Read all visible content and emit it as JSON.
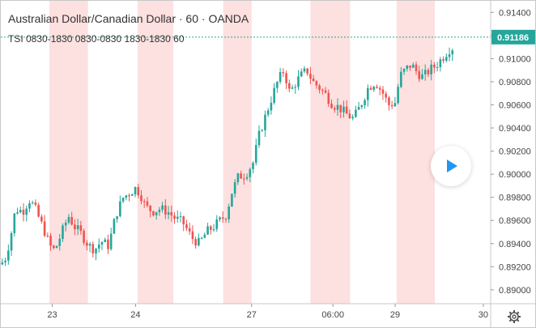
{
  "header": {
    "title": "Australian Dollar/Canadian Dollar · 60 · OANDA",
    "indicator": "TSI 0830-1830 0830-0830 1830-1830 60"
  },
  "price_badge": "0.91186",
  "colors": {
    "up": "#26a69a",
    "down": "#ef5350",
    "session_band": "#fde0e0",
    "badge": "#26a69a",
    "accent": "#2196f3"
  },
  "icons": {
    "play": "play-icon",
    "settings": "gear-icon"
  },
  "chart_data": {
    "type": "candlestick",
    "title": "Australian Dollar/Canadian Dollar · 60 · OANDA",
    "y_ticks": [
      "0.91400",
      "0.91200",
      "0.91000",
      "0.90800",
      "0.90600",
      "0.90400",
      "0.90200",
      "0.90000",
      "0.89800",
      "0.89600",
      "0.89400",
      "0.89200",
      "0.89000"
    ],
    "ylim": [
      0.8888,
      0.915
    ],
    "x_ticks": [
      {
        "label": "23",
        "pos": 0.105
      },
      {
        "label": "24",
        "pos": 0.275
      },
      {
        "label": "27",
        "pos": 0.512
      },
      {
        "label": "06:00",
        "pos": 0.678
      },
      {
        "label": "29",
        "pos": 0.805
      },
      {
        "label": "30",
        "pos": 0.985
      }
    ],
    "last_price": 0.91186,
    "session_bands": [
      [
        0.099,
        0.178
      ],
      [
        0.279,
        0.352
      ],
      [
        0.454,
        0.512
      ],
      [
        0.632,
        0.713
      ],
      [
        0.808,
        0.886
      ]
    ],
    "price_path": [
      [
        0.0,
        0.8922
      ],
      [
        0.01,
        0.8928
      ],
      [
        0.02,
        0.8946
      ],
      [
        0.03,
        0.897
      ],
      [
        0.045,
        0.8968
      ],
      [
        0.058,
        0.8978
      ],
      [
        0.068,
        0.8972
      ],
      [
        0.08,
        0.896
      ],
      [
        0.09,
        0.895
      ],
      [
        0.1,
        0.8938
      ],
      [
        0.11,
        0.8934
      ],
      [
        0.125,
        0.895
      ],
      [
        0.138,
        0.8964
      ],
      [
        0.15,
        0.8955
      ],
      [
        0.165,
        0.8948
      ],
      [
        0.18,
        0.8938
      ],
      [
        0.192,
        0.8935
      ],
      [
        0.205,
        0.8942
      ],
      [
        0.22,
        0.8938
      ],
      [
        0.235,
        0.8965
      ],
      [
        0.25,
        0.898
      ],
      [
        0.263,
        0.8984
      ],
      [
        0.275,
        0.8988
      ],
      [
        0.285,
        0.8983
      ],
      [
        0.295,
        0.8972
      ],
      [
        0.31,
        0.8968
      ],
      [
        0.325,
        0.897
      ],
      [
        0.34,
        0.8968
      ],
      [
        0.355,
        0.8962
      ],
      [
        0.372,
        0.8958
      ],
      [
        0.39,
        0.8945
      ],
      [
        0.405,
        0.894
      ],
      [
        0.42,
        0.895
      ],
      [
        0.435,
        0.8955
      ],
      [
        0.448,
        0.896
      ],
      [
        0.46,
        0.8965
      ],
      [
        0.472,
        0.8985
      ],
      [
        0.485,
        0.8998
      ],
      [
        0.5,
        0.9
      ],
      [
        0.515,
        0.901
      ],
      [
        0.528,
        0.9035
      ],
      [
        0.54,
        0.905
      ],
      [
        0.552,
        0.9065
      ],
      [
        0.565,
        0.908
      ],
      [
        0.578,
        0.909
      ],
      [
        0.59,
        0.907
      ],
      [
        0.6,
        0.9078
      ],
      [
        0.612,
        0.9085
      ],
      [
        0.625,
        0.909
      ],
      [
        0.637,
        0.908
      ],
      [
        0.65,
        0.9075
      ],
      [
        0.665,
        0.9068
      ],
      [
        0.678,
        0.906
      ],
      [
        0.69,
        0.9058
      ],
      [
        0.705,
        0.9052
      ],
      [
        0.72,
        0.9048
      ],
      [
        0.735,
        0.906
      ],
      [
        0.75,
        0.9075
      ],
      [
        0.765,
        0.908
      ],
      [
        0.78,
        0.907
      ],
      [
        0.792,
        0.906
      ],
      [
        0.805,
        0.9062
      ],
      [
        0.815,
        0.9085
      ],
      [
        0.825,
        0.909
      ],
      [
        0.838,
        0.9095
      ],
      [
        0.85,
        0.9088
      ],
      [
        0.862,
        0.9084
      ],
      [
        0.875,
        0.909
      ],
      [
        0.888,
        0.9094
      ],
      [
        0.9,
        0.91
      ],
      [
        0.915,
        0.9108
      ],
      [
        0.925,
        0.911
      ]
    ]
  }
}
